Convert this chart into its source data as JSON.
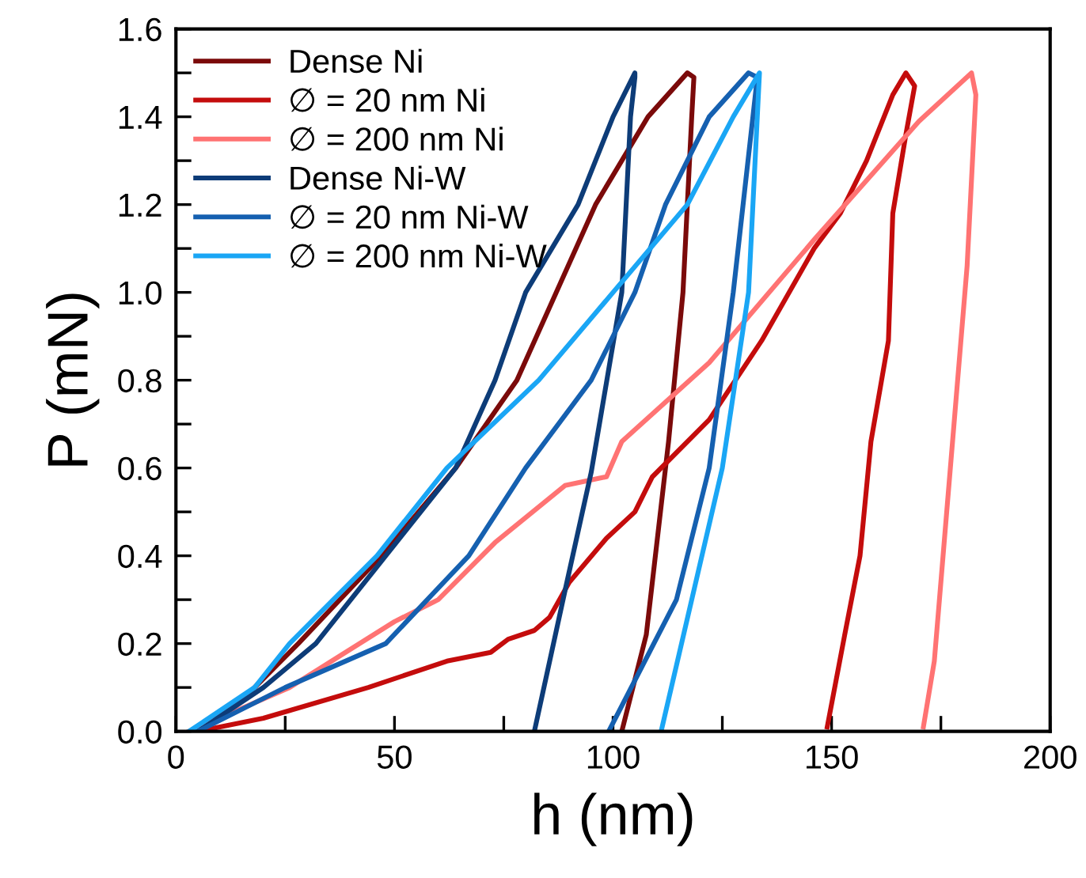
{
  "chart_data": {
    "type": "line",
    "xlabel": "h (nm)",
    "ylabel": "P (mN)",
    "xlim": [
      0,
      200
    ],
    "ylim": [
      0,
      1.6
    ],
    "xticks": [
      0,
      {
        "value": 25,
        "label": null
      },
      50,
      {
        "value": 75,
        "label": null
      },
      100,
      {
        "value": 125,
        "label": null
      },
      150,
      {
        "value": 175,
        "label": null
      },
      200
    ],
    "yticks": [
      {
        "value": 0,
        "label": "0.0"
      },
      {
        "value": 0.1,
        "label": null
      },
      {
        "value": 0.2,
        "label": "0.2"
      },
      {
        "value": 0.3,
        "label": null
      },
      {
        "value": 0.4,
        "label": "0.4"
      },
      {
        "value": 0.5,
        "label": null
      },
      {
        "value": 0.6,
        "label": "0.6"
      },
      {
        "value": 0.7,
        "label": null
      },
      {
        "value": 0.8,
        "label": "0.8"
      },
      {
        "value": 0.9,
        "label": null
      },
      {
        "value": 1.0,
        "label": "1.0"
      },
      {
        "value": 1.1,
        "label": null
      },
      {
        "value": 1.2,
        "label": "1.2"
      },
      {
        "value": 1.3,
        "label": null
      },
      {
        "value": 1.4,
        "label": "1.4"
      },
      {
        "value": 1.5,
        "label": null
      },
      {
        "value": 1.6,
        "label": "1.6"
      }
    ],
    "grid": false,
    "legend": "top left",
    "marker": "none",
    "line_style": "solid",
    "series": [
      {
        "name": "Dense Ni",
        "color": "#7b0a0a",
        "x": [
          5,
          15,
          28,
          47,
          64,
          78,
          87,
          96,
          108,
          117,
          118.5,
          118,
          116,
          112.7,
          107.6,
          102
        ],
        "values": [
          0,
          0.07,
          0.2,
          0.4,
          0.6,
          0.8,
          1.0,
          1.2,
          1.4,
          1.5,
          1.49,
          1.4,
          1.0,
          0.66,
          0.22,
          0
        ]
      },
      {
        "name": "∅ = 20 nm Ni",
        "color": "#c40c0c",
        "x": [
          5,
          20,
          44,
          62,
          72,
          76,
          82,
          85.5,
          90,
          98.5,
          105,
          109,
          122,
          134,
          146,
          152,
          158,
          164,
          167,
          169,
          167,
          164,
          163,
          159,
          156.5,
          153,
          149
        ],
        "values": [
          0,
          0.03,
          0.1,
          0.16,
          0.18,
          0.21,
          0.23,
          0.26,
          0.34,
          0.44,
          0.5,
          0.58,
          0.71,
          0.89,
          1.1,
          1.18,
          1.3,
          1.45,
          1.5,
          1.47,
          1.36,
          1.18,
          0.89,
          0.66,
          0.4,
          0.22,
          0.01
        ]
      },
      {
        "name": "∅ = 200 nm Ni",
        "color": "#ff7373",
        "x": [
          3,
          26,
          50,
          60,
          73,
          89,
          98.5,
          102,
          122,
          146,
          170,
          182,
          183,
          181,
          178,
          176,
          173.5,
          171
        ],
        "values": [
          0,
          0.1,
          0.25,
          0.3,
          0.43,
          0.56,
          0.58,
          0.66,
          0.84,
          1.12,
          1.39,
          1.5,
          1.45,
          1.06,
          0.7,
          0.46,
          0.16,
          0.01
        ]
      },
      {
        "name": "Dense Ni-W",
        "color": "#0d3c78",
        "x": [
          5,
          20,
          32,
          48,
          64,
          73,
          80,
          92,
          100,
          105,
          105,
          104,
          102,
          95,
          89,
          82
        ],
        "values": [
          0,
          0.1,
          0.2,
          0.4,
          0.6,
          0.8,
          1.0,
          1.2,
          1.4,
          1.5,
          1.49,
          1.4,
          1.0,
          0.59,
          0.32,
          0
        ]
      },
      {
        "name": "∅ = 20 nm Ni-W",
        "color": "#1560b0",
        "x": [
          5,
          25,
          48,
          67,
          80,
          95,
          105,
          112,
          122,
          131,
          133,
          132,
          127.5,
          122,
          114.5,
          99
        ],
        "values": [
          0,
          0.1,
          0.2,
          0.4,
          0.6,
          0.8,
          1.0,
          1.2,
          1.4,
          1.5,
          1.49,
          1.4,
          1.0,
          0.6,
          0.3,
          0
        ]
      },
      {
        "name": "∅ = 200 nm Ni-W",
        "color": "#1aa6f5",
        "x": [
          3,
          18,
          26,
          46,
          62,
          83,
          100,
          117,
          127.5,
          133.5,
          133,
          131,
          125,
          118,
          111
        ],
        "values": [
          0,
          0.1,
          0.2,
          0.4,
          0.6,
          0.8,
          1.0,
          1.2,
          1.4,
          1.5,
          1.4,
          1.0,
          0.6,
          0.3,
          0
        ]
      }
    ]
  }
}
